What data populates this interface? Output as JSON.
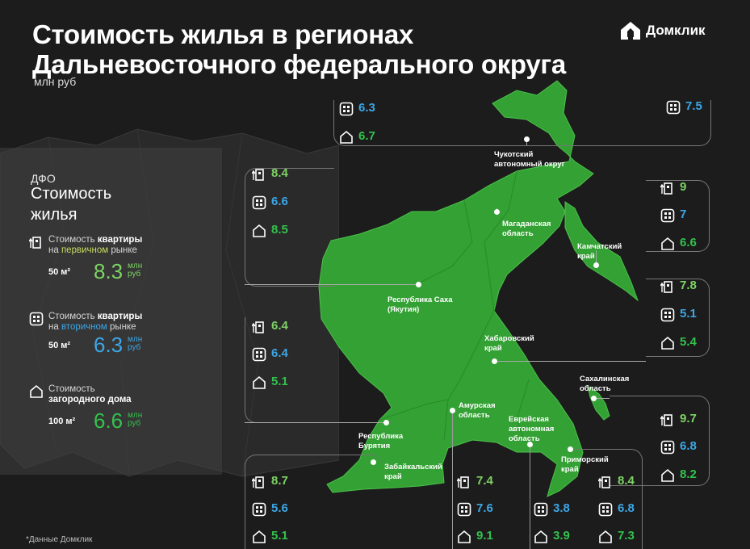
{
  "title_line1": "Стоимость жилья в регионах",
  "title_line2": "Дальневосточного федерального округа",
  "subtitle": "млн руб",
  "brand": "Домклик",
  "footnote": "*Данные Домклик",
  "colors": {
    "primary": "#7dd364",
    "secondary": "#3ca6e6",
    "house": "#33c24d",
    "map": "#2e9f2e",
    "background": "#1c1c1c"
  },
  "summary": {
    "kicker": "ДФО",
    "heading_line1": "Стоимость",
    "heading_line2": "жилья",
    "primary": {
      "label1": "Стоимость ",
      "label1_bold": "квартиры",
      "label2": "на ",
      "label2_color": "первичном",
      "label2_rest": " рынке",
      "area": "50 м²",
      "value": "8.3",
      "unit1": "млн",
      "unit2": "руб"
    },
    "secondary": {
      "label1": "Стоимость ",
      "label1_bold": "квартиры",
      "label2": "на ",
      "label2_color": "вторичном",
      "label2_rest": " рынке",
      "area": "50 м²",
      "value": "6.3",
      "unit1": "млн",
      "unit2": "руб"
    },
    "house": {
      "label1": "Стоимость",
      "label2_bold": "загородного дома",
      "area": "100 м²",
      "value": "6.6",
      "unit1": "млн",
      "unit2": "руб"
    }
  },
  "chart_data": {
    "type": "table",
    "title": "Стоимость жилья в регионах Дальневосточного федерального округа",
    "unit": "млн руб",
    "columns": [
      "Первичный рынок (квартира 50 м²)",
      "Вторичный рынок (квартира 50 м²)",
      "Загородный дом (100 м²)"
    ],
    "average": {
      "name": "ДФО",
      "primary": 8.3,
      "secondary": 6.3,
      "house": 6.6
    },
    "regions": [
      {
        "id": "chukotka",
        "name": "Чукотский автономный округ",
        "name_l1": "Чукотский",
        "name_l2": "автономный округ",
        "primary": null,
        "secondary": 7.5,
        "house": null
      },
      {
        "id": "magadan",
        "name": "Магаданская область",
        "name_l1": "Магаданская",
        "name_l2": "область",
        "primary": null,
        "secondary": 6.3,
        "house": 6.7
      },
      {
        "id": "yakutia",
        "name": "Республика Саха (Якутия)",
        "name_l1": "Республика Саха",
        "name_l2": "(Якутия)",
        "primary": 8.4,
        "secondary": 6.6,
        "house": 8.5
      },
      {
        "id": "kamchatka",
        "name": "Камчатский край",
        "name_l1": "Камчатский",
        "name_l2": "край",
        "primary": 9,
        "secondary": 7,
        "house": 6.6
      },
      {
        "id": "khabarovsk",
        "name": "Хабаровский край",
        "name_l1": "Хабаровский",
        "name_l2": "край",
        "primary": 7.8,
        "secondary": 5.1,
        "house": 5.4
      },
      {
        "id": "buryatia",
        "name": "Республика Бурятия",
        "name_l1": "Республика",
        "name_l2": "Бурятия",
        "primary": 6.4,
        "secondary": 6.4,
        "house": 5.1
      },
      {
        "id": "sakhalin",
        "name": "Сахалинская область",
        "name_l1": "Сахалинская",
        "name_l2": "область",
        "primary": 9.7,
        "secondary": 6.8,
        "house": 8.2
      },
      {
        "id": "zabaykalsky",
        "name": "Забайкальский край",
        "name_l1": "Забайкальский",
        "name_l2": "край",
        "primary": 8.7,
        "secondary": 5.6,
        "house": 5.1
      },
      {
        "id": "amur",
        "name": "Амурская область",
        "name_l1": "Амурская",
        "name_l2": "область",
        "primary": 7.4,
        "secondary": 7.6,
        "house": 9.1
      },
      {
        "id": "jewish",
        "name": "Еврейская автономная область",
        "name_l1": "Еврейская",
        "name_l2": "автономная",
        "name_l3": "область",
        "primary": null,
        "secondary": 3.8,
        "house": 3.9
      },
      {
        "id": "primorsky",
        "name": "Приморский край",
        "name_l1": "Приморский",
        "name_l2": "край",
        "primary": 8.4,
        "secondary": 6.8,
        "house": 7.3
      }
    ]
  }
}
